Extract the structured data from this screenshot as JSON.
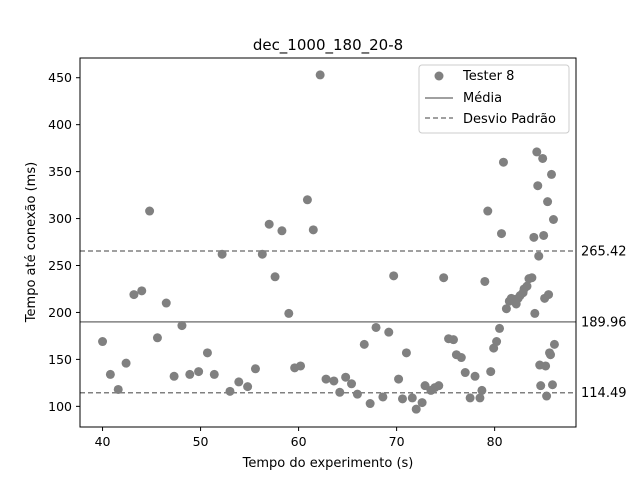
{
  "chart_data": {
    "type": "scatter",
    "title": "dec_1000_180_20-8",
    "xlabel": "Tempo do experimento (s)",
    "ylabel": "Tempo até conexão (ms)",
    "xlim": [
      37.7,
      88.3
    ],
    "ylim": [
      78,
      471
    ],
    "xticks": [
      40,
      50,
      60,
      70,
      80
    ],
    "yticks": [
      100,
      150,
      200,
      250,
      300,
      350,
      400,
      450
    ],
    "grid": false,
    "legend_position": "top-right",
    "colors": {
      "points": "#808080",
      "lines": "#808080"
    },
    "series": [
      {
        "name": "Tester 8",
        "marker": "circle",
        "points": [
          [
            40.0,
            169
          ],
          [
            40.8,
            134
          ],
          [
            41.6,
            118
          ],
          [
            42.4,
            146
          ],
          [
            43.2,
            219
          ],
          [
            44.0,
            223
          ],
          [
            44.8,
            308
          ],
          [
            45.6,
            173
          ],
          [
            46.5,
            210
          ],
          [
            47.3,
            132
          ],
          [
            48.1,
            186
          ],
          [
            48.9,
            134
          ],
          [
            49.8,
            137
          ],
          [
            50.7,
            157
          ],
          [
            51.4,
            134
          ],
          [
            52.2,
            262
          ],
          [
            53.0,
            116
          ],
          [
            53.9,
            126
          ],
          [
            54.8,
            121
          ],
          [
            55.6,
            140
          ],
          [
            56.3,
            262
          ],
          [
            57.0,
            294
          ],
          [
            57.6,
            238
          ],
          [
            58.3,
            287
          ],
          [
            59.0,
            199
          ],
          [
            59.6,
            141
          ],
          [
            60.2,
            143
          ],
          [
            60.9,
            320
          ],
          [
            61.5,
            288
          ],
          [
            62.2,
            453
          ],
          [
            62.8,
            129
          ],
          [
            63.6,
            127
          ],
          [
            64.2,
            115
          ],
          [
            64.8,
            131
          ],
          [
            65.4,
            124
          ],
          [
            66.0,
            113
          ],
          [
            66.7,
            166
          ],
          [
            67.3,
            103
          ],
          [
            67.9,
            184
          ],
          [
            68.6,
            110
          ],
          [
            69.2,
            179
          ],
          [
            69.7,
            239
          ],
          [
            70.2,
            129
          ],
          [
            70.6,
            108
          ],
          [
            71.0,
            157
          ],
          [
            71.6,
            109
          ],
          [
            72.0,
            97
          ],
          [
            72.6,
            104
          ],
          [
            72.9,
            122
          ],
          [
            73.5,
            117
          ],
          [
            73.9,
            120
          ],
          [
            74.3,
            122
          ],
          [
            74.8,
            237
          ],
          [
            75.3,
            172
          ],
          [
            75.8,
            171
          ],
          [
            76.1,
            155
          ],
          [
            76.6,
            152
          ],
          [
            77.0,
            136
          ],
          [
            77.5,
            109
          ],
          [
            78.0,
            132
          ],
          [
            78.5,
            109
          ],
          [
            78.7,
            117
          ],
          [
            79.0,
            233
          ],
          [
            79.3,
            308
          ],
          [
            79.6,
            137
          ],
          [
            79.9,
            162
          ],
          [
            80.2,
            169
          ],
          [
            80.5,
            183
          ],
          [
            80.7,
            284
          ],
          [
            80.9,
            360
          ],
          [
            81.2,
            204
          ],
          [
            81.5,
            212
          ],
          [
            81.7,
            215
          ],
          [
            81.9,
            214
          ],
          [
            82.2,
            209
          ],
          [
            82.4,
            215
          ],
          [
            82.6,
            218
          ],
          [
            82.9,
            221
          ],
          [
            83.0,
            225
          ],
          [
            83.3,
            228
          ],
          [
            83.5,
            236
          ],
          [
            83.8,
            237
          ],
          [
            84.0,
            280
          ],
          [
            84.1,
            199
          ],
          [
            84.3,
            371
          ],
          [
            84.4,
            335
          ],
          [
            84.5,
            260
          ],
          [
            84.6,
            144
          ],
          [
            84.7,
            122
          ],
          [
            84.9,
            364
          ],
          [
            85.0,
            282
          ],
          [
            85.1,
            215
          ],
          [
            85.2,
            143
          ],
          [
            85.3,
            111
          ],
          [
            85.4,
            318
          ],
          [
            85.5,
            219
          ],
          [
            85.6,
            157
          ],
          [
            85.7,
            155
          ],
          [
            85.8,
            347
          ],
          [
            85.9,
            123
          ],
          [
            86.0,
            299
          ],
          [
            86.1,
            166
          ]
        ]
      }
    ],
    "mean": {
      "name": "Média",
      "value": 189.96,
      "label": "189.96",
      "style": "solid"
    },
    "std_lines": {
      "name": "Desvio Padrão",
      "style": "dashed",
      "values": [
        265.42,
        114.49
      ],
      "labels": [
        "265.42",
        "114.49"
      ]
    }
  }
}
